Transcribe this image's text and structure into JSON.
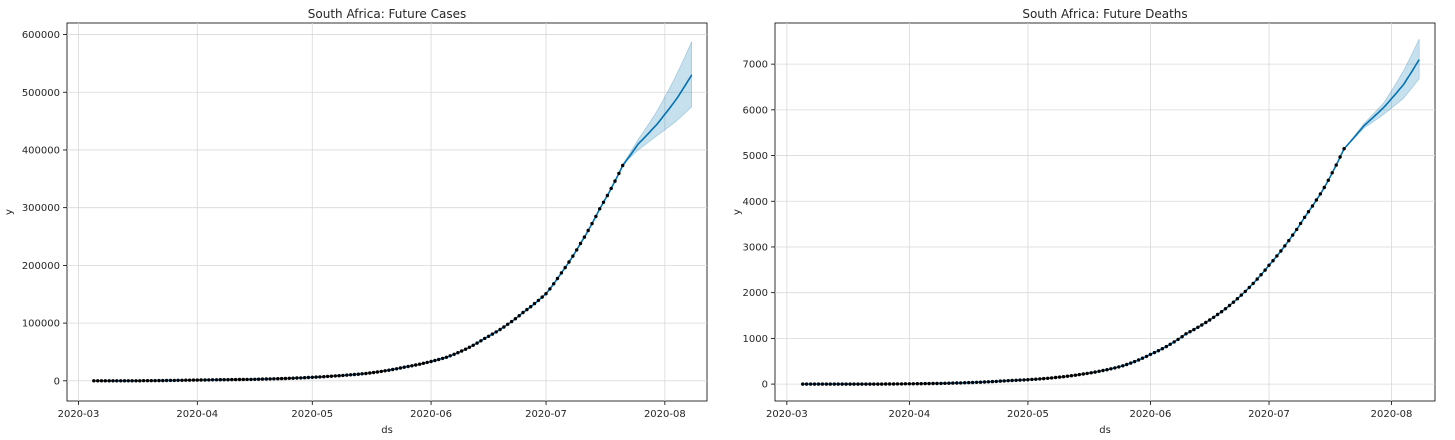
{
  "chart_data": [
    {
      "type": "line",
      "title": "South Africa: Future Cases",
      "xlabel": "ds",
      "ylabel": "y",
      "xlim": [
        "2020-02-27",
        "2020-08-12"
      ],
      "ylim": [
        -35000,
        620000
      ],
      "x_ticks": [
        "2020-03",
        "2020-04",
        "2020-05",
        "2020-06",
        "2020-07",
        "2020-08"
      ],
      "y_ticks": [
        0,
        100000,
        200000,
        300000,
        400000,
        500000,
        600000
      ],
      "y_tick_labels": [
        "0",
        "100000",
        "200000",
        "300000",
        "400000",
        "500000",
        "600000"
      ],
      "grid": true,
      "colors": {
        "forecast": "#0072B2",
        "band": "#0072B2",
        "points": "#000000"
      },
      "observed_range": [
        "2020-03-05",
        "2020-07-21"
      ],
      "observed": [
        [
          "2020-03-05",
          0
        ],
        [
          "2020-03-15",
          50
        ],
        [
          "2020-03-25",
          700
        ],
        [
          "2020-04-05",
          1700
        ],
        [
          "2020-04-15",
          2500
        ],
        [
          "2020-04-25",
          4300
        ],
        [
          "2020-05-05",
          7600
        ],
        [
          "2020-05-15",
          12700
        ],
        [
          "2020-05-25",
          23600
        ],
        [
          "2020-06-05",
          40800
        ],
        [
          "2020-06-15",
          73500
        ],
        [
          "2020-06-25",
          118400
        ],
        [
          "2020-07-01",
          151000
        ],
        [
          "2020-07-05",
          187000
        ],
        [
          "2020-07-10",
          238000
        ],
        [
          "2020-07-15",
          298000
        ],
        [
          "2020-07-21",
          373000
        ]
      ],
      "forecast": [
        [
          "2020-07-21",
          375000
        ],
        [
          "2020-07-25",
          410000
        ],
        [
          "2020-07-30",
          445000
        ],
        [
          "2020-08-04",
          488000
        ],
        [
          "2020-08-08",
          530000
        ]
      ],
      "forecast_lower": [
        [
          "2020-07-21",
          375000
        ],
        [
          "2020-07-25",
          400000
        ],
        [
          "2020-07-30",
          425000
        ],
        [
          "2020-08-04",
          450000
        ],
        [
          "2020-08-08",
          475000
        ]
      ],
      "forecast_upper": [
        [
          "2020-07-21",
          375000
        ],
        [
          "2020-07-25",
          418000
        ],
        [
          "2020-07-30",
          468000
        ],
        [
          "2020-08-04",
          530000
        ],
        [
          "2020-08-08",
          588000
        ]
      ]
    },
    {
      "type": "line",
      "title": "South Africa: Future Deaths",
      "xlabel": "ds",
      "ylabel": "y",
      "xlim": [
        "2020-02-27",
        "2020-08-12"
      ],
      "ylim": [
        -370,
        7900
      ],
      "x_ticks": [
        "2020-03",
        "2020-04",
        "2020-05",
        "2020-06",
        "2020-07",
        "2020-08"
      ],
      "y_ticks": [
        0,
        1000,
        2000,
        3000,
        4000,
        5000,
        6000,
        7000
      ],
      "y_tick_labels": [
        "0",
        "1000",
        "2000",
        "3000",
        "4000",
        "5000",
        "6000",
        "7000"
      ],
      "grid": true,
      "colors": {
        "forecast": "#0072B2",
        "band": "#0072B2",
        "points": "#000000"
      },
      "observed_range": [
        "2020-03-05",
        "2020-07-20"
      ],
      "observed": [
        [
          "2020-03-05",
          0
        ],
        [
          "2020-03-25",
          0
        ],
        [
          "2020-04-05",
          10
        ],
        [
          "2020-04-15",
          30
        ],
        [
          "2020-04-25",
          70
        ],
        [
          "2020-05-05",
          120
        ],
        [
          "2020-05-15",
          220
        ],
        [
          "2020-05-25",
          400
        ],
        [
          "2020-06-01",
          650
        ],
        [
          "2020-06-10",
          1100
        ],
        [
          "2020-06-20",
          1650
        ],
        [
          "2020-07-01",
          2600
        ],
        [
          "2020-07-10",
          3650
        ],
        [
          "2020-07-15",
          4300
        ],
        [
          "2020-07-20",
          5150
        ]
      ],
      "forecast": [
        [
          "2020-07-20",
          5150
        ],
        [
          "2020-07-25",
          5650
        ],
        [
          "2020-07-30",
          6050
        ],
        [
          "2020-08-04",
          6550
        ],
        [
          "2020-08-08",
          7100
        ]
      ],
      "forecast_lower": [
        [
          "2020-07-20",
          5150
        ],
        [
          "2020-07-25",
          5600
        ],
        [
          "2020-07-30",
          5900
        ],
        [
          "2020-08-04",
          6250
        ],
        [
          "2020-08-08",
          6680
        ]
      ],
      "forecast_upper": [
        [
          "2020-07-20",
          5150
        ],
        [
          "2020-07-25",
          5700
        ],
        [
          "2020-07-30",
          6150
        ],
        [
          "2020-08-04",
          6850
        ],
        [
          "2020-08-08",
          7550
        ]
      ]
    }
  ]
}
